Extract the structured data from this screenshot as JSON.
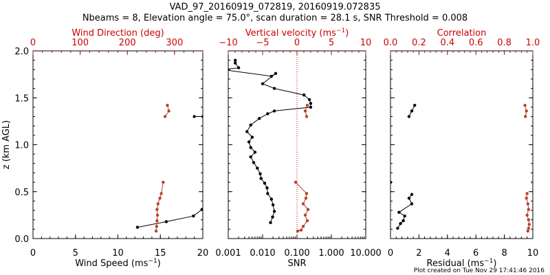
{
  "header": {
    "title": "VAD_97_20160919_072819, 20160919.072835",
    "subtitle": "Nbeams = 8, Elevation angle = 75.0°, scan duration = 28.1 s, SNR Threshold = 0.008"
  },
  "footer": {
    "credit": "Plot created on Tue Nov 29 17:41:46 2016"
  },
  "colors": {
    "primary": "#000000",
    "secondary": "#cc0000",
    "red_points": "#b5402a"
  },
  "chart_data": [
    {
      "type": "line",
      "panel": "left",
      "xlabel": "Wind Speed",
      "xlabel_unit": "(ms",
      "xlabel_exp": "−1",
      "xlabel_close": ")",
      "ylabel": "z (km AGL)",
      "xlim": [
        0,
        20
      ],
      "ylim": [
        0,
        2.0
      ],
      "xticks": [
        "0",
        "5",
        "10",
        "15",
        "20"
      ],
      "yticks": [
        "0.0",
        "0.5",
        "1.0",
        "1.5",
        "2.0"
      ],
      "top_axis": {
        "label": "Wind Direction (deg)",
        "xlim": [
          0,
          360
        ],
        "ticks": [
          "0",
          "100",
          "200",
          "300"
        ]
      },
      "series": [
        {
          "axis": "bottom",
          "style": "line",
          "color": "#000000",
          "x": [
            19.0,
            20.0
          ],
          "y": [
            1.3,
            1.3
          ]
        },
        {
          "axis": "bottom",
          "style": "line",
          "color": "#000000",
          "x": [
            12.3,
            15.7,
            18.9,
            19.9
          ],
          "y": [
            0.12,
            0.18,
            0.24,
            0.31
          ]
        },
        {
          "axis": "top",
          "style": "line",
          "color": "#b5402a",
          "x": [
            285,
            288,
            280
          ],
          "y": [
            1.42,
            1.36,
            1.3
          ]
        },
        {
          "axis": "top",
          "style": "line",
          "color": "#b5402a",
          "x": [
            276,
            272,
            269,
            265,
            263,
            264,
            263,
            262,
            261
          ],
          "y": [
            0.6,
            0.48,
            0.43,
            0.37,
            0.31,
            0.25,
            0.19,
            0.13,
            0.08
          ]
        }
      ]
    },
    {
      "type": "line",
      "panel": "middle",
      "xlabel": "SNR",
      "xscale": "log",
      "xlim": [
        0.001,
        10
      ],
      "ylim": [
        0,
        2.0
      ],
      "xticks": [
        "0.001",
        "0.010",
        "0.100",
        "1.000",
        "10.000"
      ],
      "top_axis": {
        "label": "Vertical velocity",
        "unit": "(ms",
        "unit_exp": "−1",
        "unit_close": ")",
        "xlim": [
          -10,
          10
        ],
        "ticks": [
          "−10",
          "−5",
          "0",
          "5",
          "10"
        ],
        "zero_line": "dotted"
      },
      "series": [
        {
          "axis": "bottom",
          "style": "line",
          "color": "#000000",
          "x": [
            0.0016,
            0.0016,
            0.002,
            0.0007,
            0.018,
            0.024,
            0.01,
            0.022,
            0.16,
            0.23,
            0.25,
            0.25,
            0.022,
            0.014,
            0.008,
            0.0045,
            0.0035,
            0.005,
            0.004,
            0.0045,
            0.006,
            0.0045,
            0.0055,
            0.007,
            0.0085,
            0.009,
            0.0115,
            0.0135,
            0.014,
            0.018,
            0.02,
            0.022,
            0.0195,
            0.017
          ],
          "y": [
            1.9,
            1.87,
            1.82,
            1.8,
            1.73,
            1.76,
            1.65,
            1.6,
            1.53,
            1.48,
            1.44,
            1.4,
            1.36,
            1.33,
            1.28,
            1.21,
            1.14,
            1.08,
            1.03,
            0.97,
            0.92,
            0.87,
            0.81,
            0.75,
            0.69,
            0.64,
            0.59,
            0.54,
            0.48,
            0.42,
            0.36,
            0.29,
            0.23,
            0.17
          ]
        },
        {
          "axis": "top",
          "style": "line",
          "color": "#b5402a",
          "x": [
            1.5,
            1.2,
            1.4
          ],
          "y": [
            1.42,
            1.36,
            1.3
          ]
        },
        {
          "axis": "top",
          "style": "line",
          "color": "#b5402a",
          "x": [
            -0.2,
            1.4,
            1.3,
            0.9,
            1.6,
            1.2,
            1.5,
            0.9,
            0.6,
            0.1
          ],
          "y": [
            0.6,
            0.48,
            0.43,
            0.37,
            0.31,
            0.25,
            0.19,
            0.13,
            0.09,
            0.08
          ]
        }
      ]
    },
    {
      "type": "line",
      "panel": "right",
      "xlabel": "Residual",
      "xlabel_unit": "(ms",
      "xlabel_exp": "−1",
      "xlabel_close": ")",
      "xlim": [
        0,
        10
      ],
      "ylim": [
        0,
        2.0
      ],
      "xticks": [
        "0",
        "2",
        "4",
        "6",
        "8",
        "10"
      ],
      "top_axis": {
        "label": "Correlation",
        "xlim": [
          0,
          1
        ],
        "ticks": [
          "0.0",
          "0.2",
          "0.4",
          "0.6",
          "0.8",
          "1.0"
        ]
      },
      "series": [
        {
          "axis": "bottom",
          "style": "line",
          "color": "#000000",
          "x": [
            1.7,
            1.5,
            1.3
          ],
          "y": [
            1.42,
            1.36,
            1.3
          ]
        },
        {
          "axis": "bottom",
          "style": "points",
          "color": "#000000",
          "x": [
            0.0
          ],
          "y": [
            0.6
          ]
        },
        {
          "axis": "bottom",
          "style": "line",
          "color": "#000000",
          "x": [
            1.5,
            1.3,
            1.5,
            0.6,
            1.0,
            0.9,
            0.7,
            0.5
          ],
          "y": [
            0.47,
            0.43,
            0.37,
            0.28,
            0.24,
            0.19,
            0.16,
            0.11
          ]
        },
        {
          "axis": "top",
          "style": "line",
          "color": "#b5402a",
          "x": [
            0.945,
            0.955,
            0.948
          ],
          "y": [
            1.42,
            1.36,
            1.3
          ]
        },
        {
          "axis": "top",
          "style": "points",
          "color": "#b5402a",
          "x": [
            1.0
          ],
          "y": [
            0.6
          ]
        },
        {
          "axis": "top",
          "style": "line",
          "color": "#b5402a",
          "x": [
            0.96,
            0.955,
            0.965,
            0.97,
            0.96,
            0.97,
            0.975,
            0.97,
            0.965
          ],
          "y": [
            0.48,
            0.43,
            0.37,
            0.31,
            0.25,
            0.2,
            0.15,
            0.11,
            0.08
          ]
        }
      ]
    }
  ]
}
